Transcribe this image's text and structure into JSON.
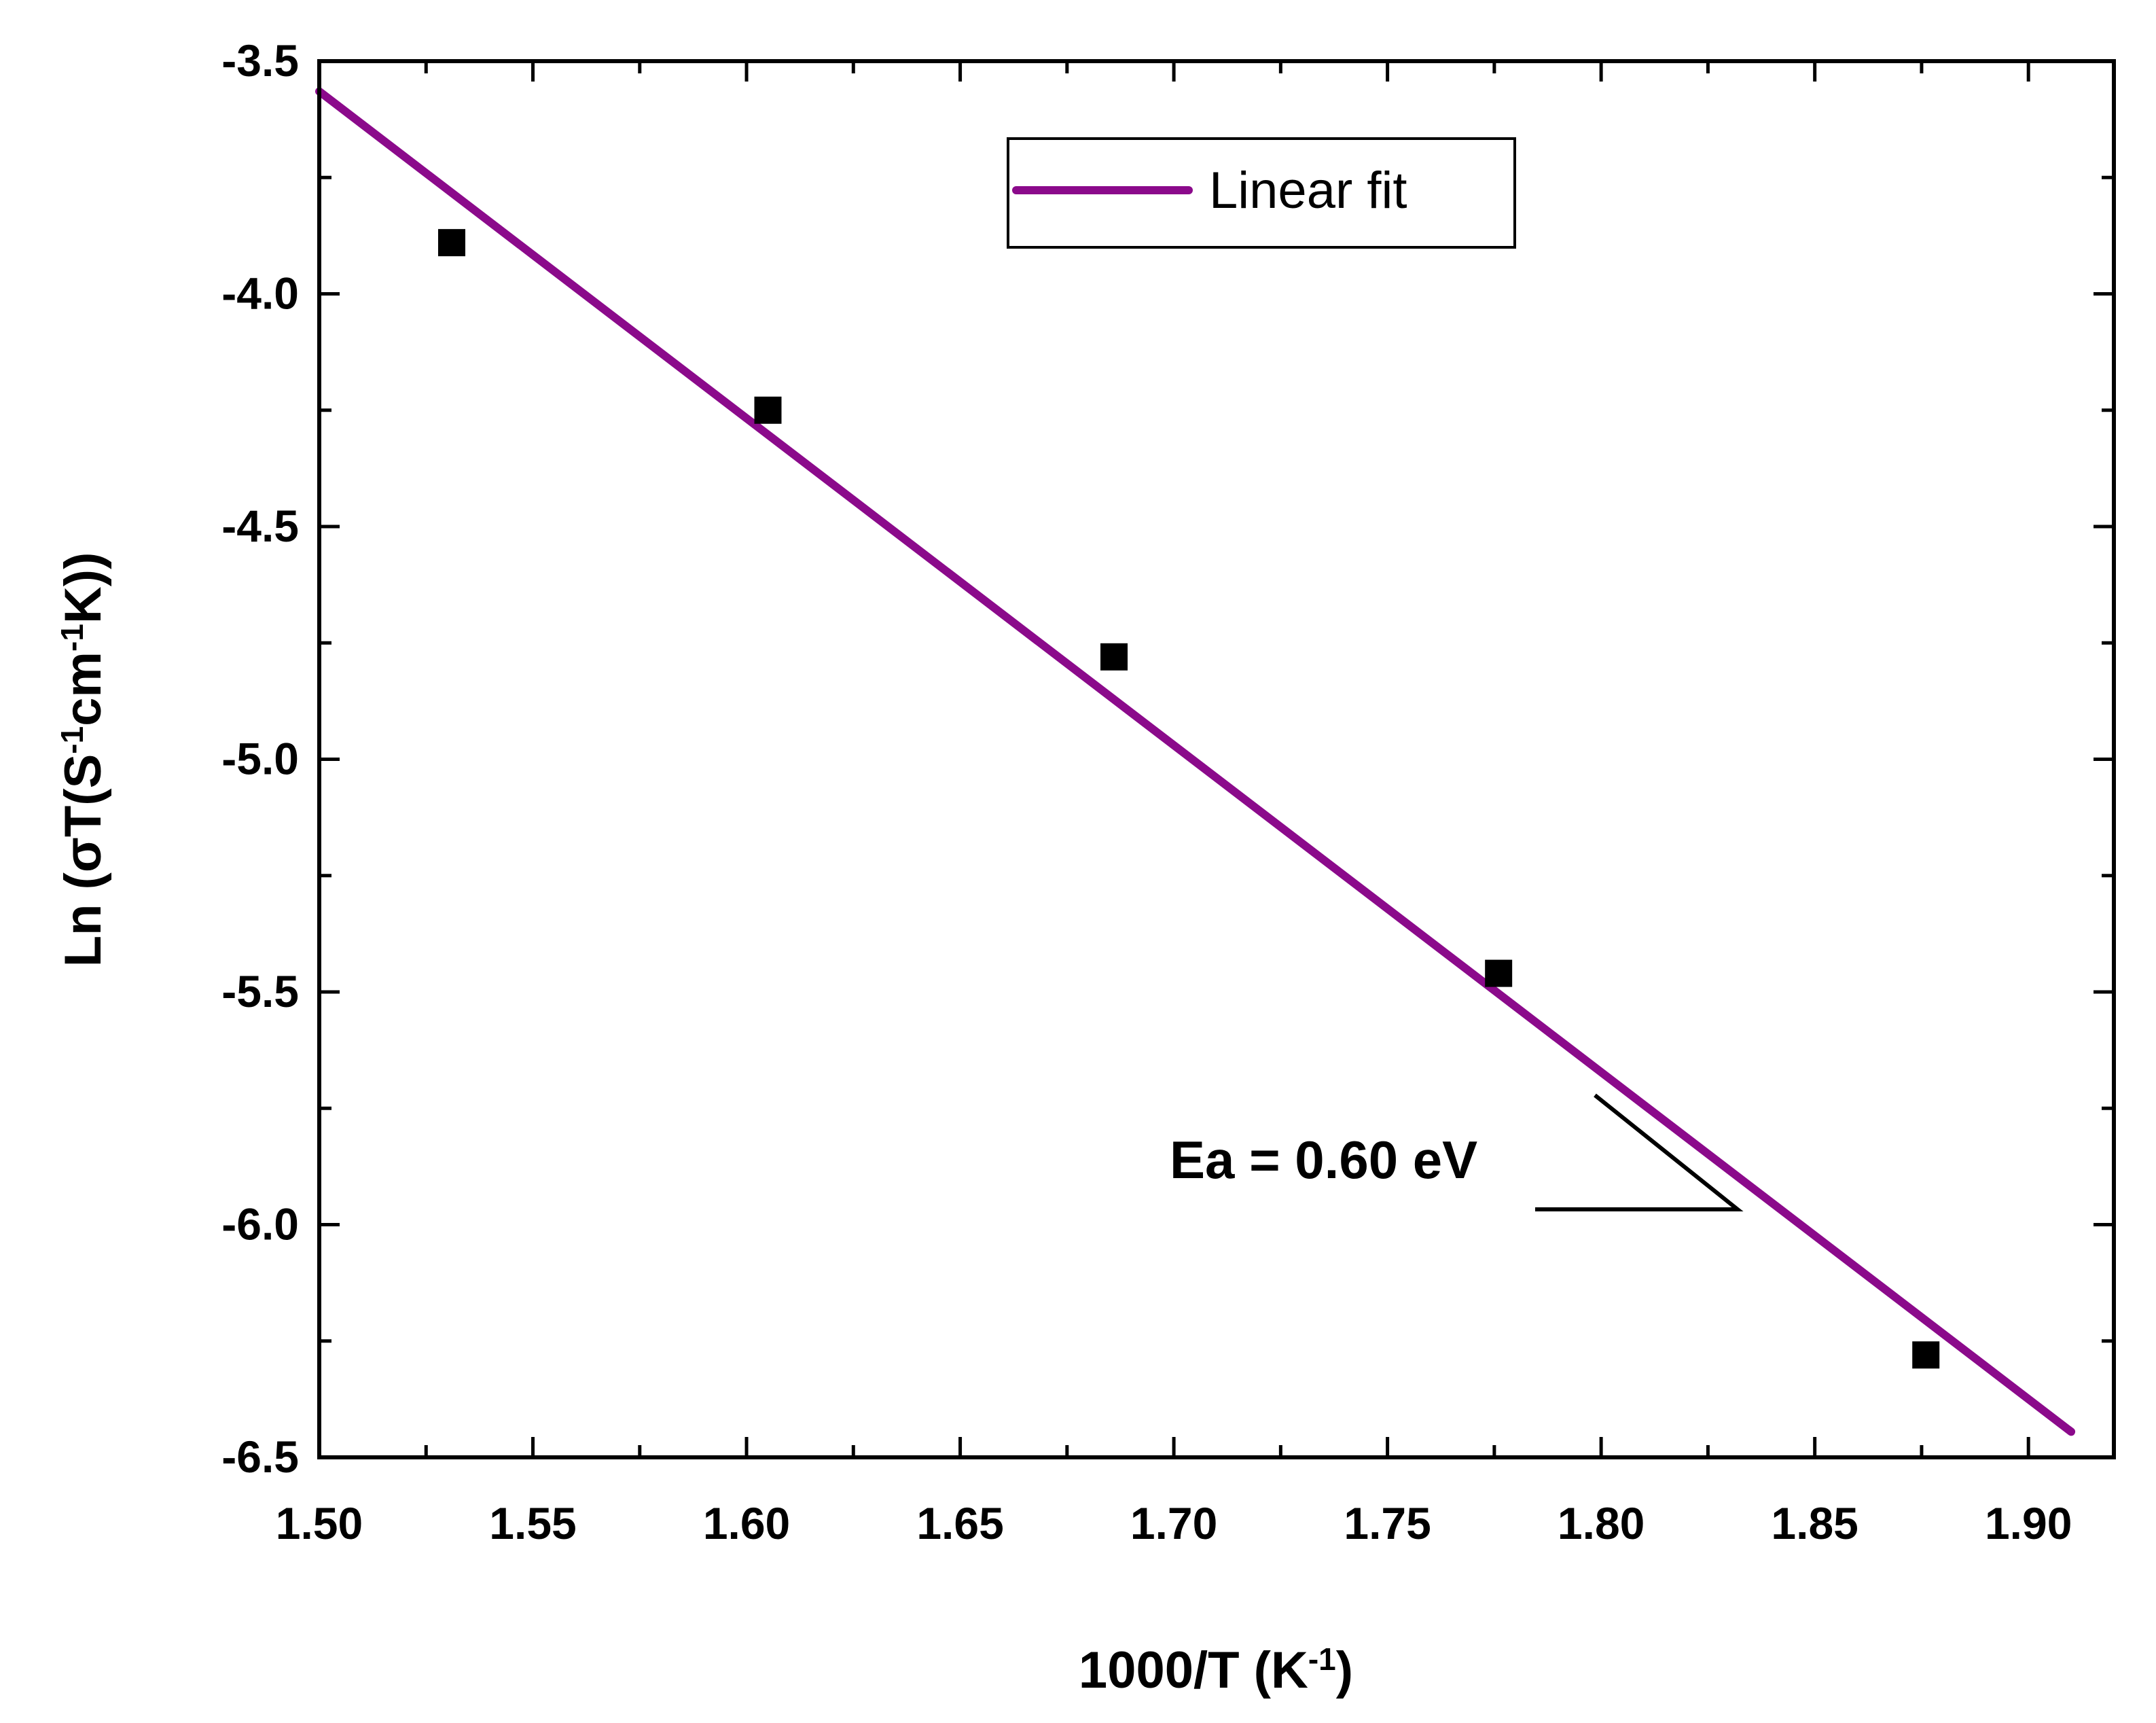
{
  "chart_data": {
    "type": "scatter",
    "title": "",
    "xlabel": {
      "main": "1000/T (K",
      "sup": "-1",
      "close": ")"
    },
    "ylabel": {
      "p1": "Ln (σT(S",
      "s1": "-1",
      "p2": "cm",
      "s2": "-1",
      "p3": "K))"
    },
    "xlim": [
      1.5,
      1.92
    ],
    "ylim": [
      -6.5,
      -3.5
    ],
    "x_ticks": [
      1.5,
      1.55,
      1.6,
      1.65,
      1.7,
      1.75,
      1.8,
      1.85,
      1.9
    ],
    "x_tick_labels": [
      "1.50",
      "1.55",
      "1.60",
      "1.65",
      "1.70",
      "1.75",
      "1.80",
      "1.85",
      "1.90"
    ],
    "y_ticks": [
      -3.5,
      -4.0,
      -4.5,
      -5.0,
      -5.5,
      -6.0,
      -6.5
    ],
    "y_tick_labels": [
      "-3.5",
      "-4.0",
      "-4.5",
      "-5.0",
      "-5.5",
      "-6.0",
      "-6.5"
    ],
    "series": [
      {
        "name": "data",
        "kind": "scatter",
        "marker": "square",
        "color": "#000000",
        "x": [
          1.531,
          1.605,
          1.686,
          1.776,
          1.876
        ],
        "y": [
          -3.89,
          -4.25,
          -4.78,
          -5.46,
          -6.28
        ]
      },
      {
        "name": "Linear fit",
        "kind": "line",
        "color": "#8b0a8b",
        "x": [
          1.5,
          1.91
        ],
        "y": [
          -3.565,
          -6.445
        ]
      }
    ],
    "legend": {
      "position": "top-center",
      "entries": [
        "Linear fit"
      ]
    },
    "annotations": [
      {
        "text": "Ea = 0.60 eV"
      }
    ],
    "grid": false
  }
}
